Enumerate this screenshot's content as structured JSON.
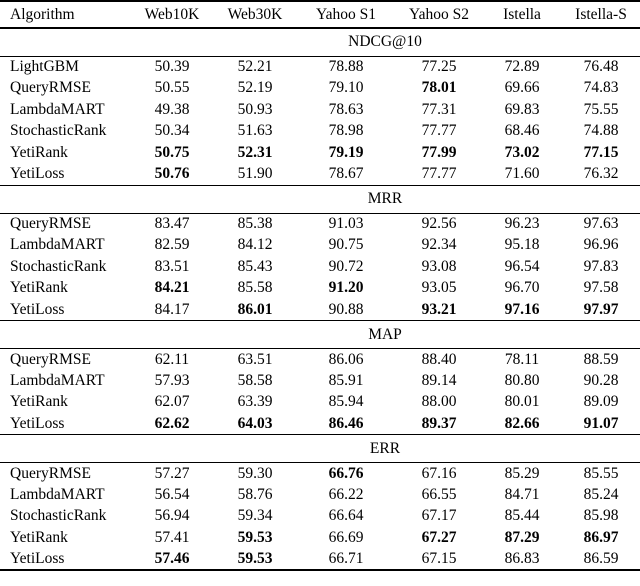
{
  "table": {
    "columns": [
      "Algorithm",
      "Web10K",
      "Web30K",
      "Yahoo S1",
      "Yahoo S2",
      "Istella",
      "Istella-S"
    ],
    "sections": [
      {
        "metric": "NDCG@10",
        "rows": [
          {
            "algorithm": "LightGBM",
            "values": [
              "50.39",
              "52.21",
              "78.88",
              "77.25",
              "72.89",
              "76.48"
            ],
            "bold": [
              false,
              false,
              false,
              false,
              false,
              false
            ]
          },
          {
            "algorithm": "QueryRMSE",
            "values": [
              "50.55",
              "52.19",
              "79.10",
              "78.01",
              "69.66",
              "74.83"
            ],
            "bold": [
              false,
              false,
              false,
              true,
              false,
              false
            ]
          },
          {
            "algorithm": "LambdaMART",
            "values": [
              "49.38",
              "50.93",
              "78.63",
              "77.31",
              "69.83",
              "75.55"
            ],
            "bold": [
              false,
              false,
              false,
              false,
              false,
              false
            ]
          },
          {
            "algorithm": "StochasticRank",
            "values": [
              "50.34",
              "51.63",
              "78.98",
              "77.77",
              "68.46",
              "74.88"
            ],
            "bold": [
              false,
              false,
              false,
              false,
              false,
              false
            ]
          },
          {
            "algorithm": "YetiRank",
            "values": [
              "50.75",
              "52.31",
              "79.19",
              "77.99",
              "73.02",
              "77.15"
            ],
            "bold": [
              true,
              true,
              true,
              true,
              true,
              true
            ]
          },
          {
            "algorithm": "YetiLoss",
            "values": [
              "50.76",
              "51.90",
              "78.67",
              "77.77",
              "71.60",
              "76.32"
            ],
            "bold": [
              true,
              false,
              false,
              false,
              false,
              false
            ]
          }
        ]
      },
      {
        "metric": "MRR",
        "rows": [
          {
            "algorithm": "QueryRMSE",
            "values": [
              "83.47",
              "85.38",
              "91.03",
              "92.56",
              "96.23",
              "97.63"
            ],
            "bold": [
              false,
              false,
              false,
              false,
              false,
              false
            ]
          },
          {
            "algorithm": "LambdaMART",
            "values": [
              "82.59",
              "84.12",
              "90.75",
              "92.34",
              "95.18",
              "96.96"
            ],
            "bold": [
              false,
              false,
              false,
              false,
              false,
              false
            ]
          },
          {
            "algorithm": "StochasticRank",
            "values": [
              "83.51",
              "85.43",
              "90.72",
              "93.08",
              "96.54",
              "97.83"
            ],
            "bold": [
              false,
              false,
              false,
              false,
              false,
              false
            ]
          },
          {
            "algorithm": "YetiRank",
            "values": [
              "84.21",
              "85.58",
              "91.20",
              "93.05",
              "96.70",
              "97.58"
            ],
            "bold": [
              true,
              false,
              true,
              false,
              false,
              false
            ]
          },
          {
            "algorithm": "YetiLoss",
            "values": [
              "84.17",
              "86.01",
              "90.88",
              "93.21",
              "97.16",
              "97.97"
            ],
            "bold": [
              false,
              true,
              false,
              true,
              true,
              true
            ]
          }
        ]
      },
      {
        "metric": "MAP",
        "rows": [
          {
            "algorithm": "QueryRMSE",
            "values": [
              "62.11",
              "63.51",
              "86.06",
              "88.40",
              "78.11",
              "88.59"
            ],
            "bold": [
              false,
              false,
              false,
              false,
              false,
              false
            ]
          },
          {
            "algorithm": "LambdaMART",
            "values": [
              "57.93",
              "58.58",
              "85.91",
              "89.14",
              "80.80",
              "90.28"
            ],
            "bold": [
              false,
              false,
              false,
              false,
              false,
              false
            ]
          },
          {
            "algorithm": "YetiRank",
            "values": [
              "62.07",
              "63.39",
              "85.94",
              "88.00",
              "80.01",
              "89.09"
            ],
            "bold": [
              false,
              false,
              false,
              false,
              false,
              false
            ]
          },
          {
            "algorithm": "YetiLoss",
            "values": [
              "62.62",
              "64.03",
              "86.46",
              "89.37",
              "82.66",
              "91.07"
            ],
            "bold": [
              true,
              true,
              true,
              true,
              true,
              true
            ]
          }
        ]
      },
      {
        "metric": "ERR",
        "rows": [
          {
            "algorithm": "QueryRMSE",
            "values": [
              "57.27",
              "59.30",
              "66.76",
              "67.16",
              "85.29",
              "85.55"
            ],
            "bold": [
              false,
              false,
              true,
              false,
              false,
              false
            ]
          },
          {
            "algorithm": "LambdaMART",
            "values": [
              "56.54",
              "58.76",
              "66.22",
              "66.55",
              "84.71",
              "85.24"
            ],
            "bold": [
              false,
              false,
              false,
              false,
              false,
              false
            ]
          },
          {
            "algorithm": "StochasticRank",
            "values": [
              "56.94",
              "59.34",
              "66.64",
              "67.17",
              "85.44",
              "85.98"
            ],
            "bold": [
              false,
              false,
              false,
              false,
              false,
              false
            ]
          },
          {
            "algorithm": "YetiRank",
            "values": [
              "57.41",
              "59.53",
              "66.69",
              "67.27",
              "87.29",
              "86.97"
            ],
            "bold": [
              false,
              true,
              false,
              true,
              true,
              true
            ]
          },
          {
            "algorithm": "YetiLoss",
            "values": [
              "57.46",
              "59.53",
              "66.71",
              "67.15",
              "86.83",
              "86.59"
            ],
            "bold": [
              true,
              true,
              false,
              false,
              false,
              false
            ]
          }
        ]
      }
    ]
  },
  "colors": {
    "text": "#000000",
    "background": "#ffffff",
    "rule": "#000000"
  }
}
